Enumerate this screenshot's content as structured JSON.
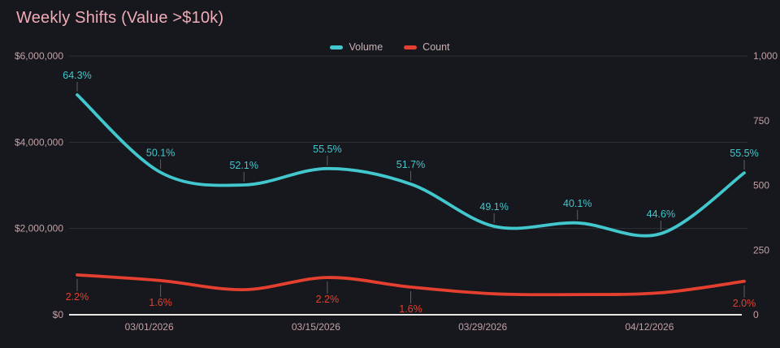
{
  "title": "Weekly Shifts (Value >$10k)",
  "legend": {
    "items": [
      {
        "label": "Volume",
        "color": "#41c7cd"
      },
      {
        "label": "Count",
        "color": "#e5402f"
      }
    ]
  },
  "chart_data": {
    "type": "line",
    "title": "Weekly Shifts (Value >$10k)",
    "smooth": true,
    "grid": true,
    "legend_position": "top-center",
    "x": {
      "type": "time",
      "interval": "weekly",
      "num_points": 9,
      "tick_labels": [
        "03/01/2026",
        "03/15/2026",
        "03/29/2026",
        "04/12/2026"
      ],
      "tick_point_indices": [
        1,
        3,
        5,
        7
      ]
    },
    "left_axis": {
      "min": 0,
      "max": 6000000,
      "tick_labels": [
        "$6,000,000",
        "$4,000,000",
        "$2,000,000",
        "$0"
      ],
      "tick_values": [
        6000000,
        4000000,
        2000000,
        0
      ]
    },
    "right_axis": {
      "min": 0,
      "max": 1000,
      "tick_labels": [
        "1,000",
        "750",
        "500",
        "250",
        "0"
      ],
      "tick_values": [
        1000,
        750,
        500,
        250,
        0
      ]
    },
    "series": [
      {
        "name": "Volume",
        "axis": "left",
        "color": "#41c7cd",
        "values": [
          5100000,
          3300000,
          3010000,
          3390000,
          3030000,
          2050000,
          2130000,
          1880000,
          3290000
        ],
        "point_labels": [
          "64.3%",
          "50.1%",
          "52.1%",
          "55.5%",
          "51.7%",
          "49.1%",
          "40.1%",
          "44.6%",
          "55.5%"
        ],
        "label_position": "above"
      },
      {
        "name": "Count",
        "axis": "right",
        "color": "#e5402f",
        "values": [
          154,
          132,
          97,
          144,
          107,
          81,
          78,
          85,
          129
        ],
        "point_labels": [
          "2.2%",
          "1.6%",
          null,
          "2.2%",
          "1.6%",
          null,
          null,
          null,
          "2.0%"
        ],
        "label_position": "below"
      }
    ]
  },
  "colors": {
    "background": "#17181d",
    "title": "#f0acb8",
    "axis_label": "#c2a0a6",
    "legend_text": "#c9b2b6",
    "gridline": "#2e3036",
    "axis_line": "#e9e7e5",
    "leader_line": "#5d5f64",
    "volume": "#41c7cd",
    "count": "#e5402f"
  }
}
